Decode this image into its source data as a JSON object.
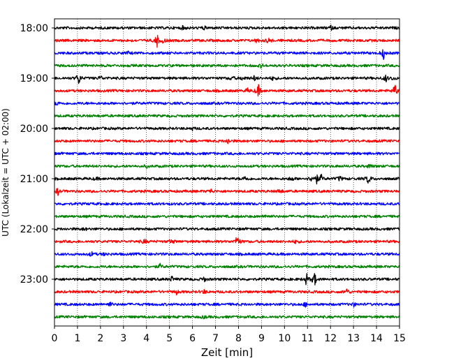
{
  "chart_data": {
    "type": "line",
    "title": "",
    "xlabel": "Zeit  [min]",
    "ylabel": "UTC (Lokalzeit = UTC + 02:00)",
    "xlim": [
      0,
      15
    ],
    "x_ticks": [
      0,
      1,
      2,
      3,
      4,
      5,
      6,
      7,
      8,
      9,
      10,
      11,
      12,
      13,
      14,
      15
    ],
    "x_tick_labels": [
      "0",
      "1",
      "2",
      "3",
      "4",
      "5",
      "6",
      "7",
      "8",
      "9",
      "10",
      "11",
      "12",
      "13",
      "14",
      "15"
    ],
    "y_tick_labels": [
      "18:00",
      "19:00",
      "20:00",
      "21:00",
      "22:00",
      "23:00"
    ],
    "y_tick_rows": [
      0,
      4,
      8,
      12,
      16,
      20
    ],
    "vertical_grid": true,
    "grid_style": "dotted",
    "trace_colors": [
      "#000000",
      "#ff0000",
      "#0000ff",
      "#008000"
    ],
    "traces_per_hour": 4,
    "minutes_per_trace": 15,
    "traces": [
      {
        "start": "18:00",
        "events": [
          {
            "t": 5.6,
            "a": 0.25
          },
          {
            "t": 12.0,
            "a": 0.3
          },
          {
            "t": 6.5,
            "a": 0.2
          }
        ]
      },
      {
        "start": "18:15",
        "events": [
          {
            "t": 4.45,
            "a": 0.9
          },
          {
            "t": 4.75,
            "a": 0.35
          },
          {
            "t": 8.8,
            "a": 0.3
          },
          {
            "t": 9.3,
            "a": 0.35
          }
        ]
      },
      {
        "start": "18:30",
        "events": [
          {
            "t": 14.3,
            "a": 0.75
          },
          {
            "t": 3.2,
            "a": 0.15
          }
        ]
      },
      {
        "start": "18:45",
        "events": [
          {
            "t": 9.0,
            "a": 0.25
          }
        ]
      },
      {
        "start": "19:00",
        "events": [
          {
            "t": 1.05,
            "a": 0.85
          },
          {
            "t": 2.0,
            "a": 0.3
          },
          {
            "t": 7.7,
            "a": 0.3
          },
          {
            "t": 8.2,
            "a": 0.35
          },
          {
            "t": 8.7,
            "a": 0.3
          },
          {
            "t": 9.5,
            "a": 0.25
          },
          {
            "t": 14.4,
            "a": 0.45
          },
          {
            "t": 14.7,
            "a": 0.2
          }
        ]
      },
      {
        "start": "19:15",
        "events": [
          {
            "t": 8.85,
            "a": 0.95
          },
          {
            "t": 14.8,
            "a": 0.85
          },
          {
            "t": 8.4,
            "a": 0.25
          }
        ]
      },
      {
        "start": "19:30",
        "events": [
          {
            "t": 0.1,
            "a": 0.25
          }
        ]
      },
      {
        "start": "19:45",
        "events": []
      },
      {
        "start": "20:00",
        "events": [
          {
            "t": 6.0,
            "a": 0.15
          }
        ]
      },
      {
        "start": "20:15",
        "events": [
          {
            "t": 7.55,
            "a": 0.35
          }
        ]
      },
      {
        "start": "20:30",
        "events": []
      },
      {
        "start": "20:45",
        "events": [
          {
            "t": 13.7,
            "a": 0.3
          },
          {
            "t": 4.0,
            "a": 0.15
          }
        ]
      },
      {
        "start": "21:00",
        "events": [
          {
            "t": 8.3,
            "a": 0.35
          },
          {
            "t": 10.3,
            "a": 0.3
          },
          {
            "t": 11.2,
            "a": 0.55
          },
          {
            "t": 11.4,
            "a": 0.5
          },
          {
            "t": 11.6,
            "a": 0.45
          },
          {
            "t": 12.4,
            "a": 0.35
          },
          {
            "t": 13.65,
            "a": 0.75
          },
          {
            "t": 1.8,
            "a": 0.2
          }
        ]
      },
      {
        "start": "21:15",
        "events": [
          {
            "t": 0.15,
            "a": 0.45
          },
          {
            "t": 6.8,
            "a": 0.3
          },
          {
            "t": 9.8,
            "a": 0.3
          }
        ]
      },
      {
        "start": "21:30",
        "events": []
      },
      {
        "start": "21:45",
        "events": [
          {
            "t": 9.2,
            "a": 0.25
          }
        ]
      },
      {
        "start": "22:00",
        "events": [
          {
            "t": 1.3,
            "a": 0.2
          }
        ]
      },
      {
        "start": "22:15",
        "events": [
          {
            "t": 7.95,
            "a": 0.95
          },
          {
            "t": 3.9,
            "a": 0.3
          },
          {
            "t": 5.1,
            "a": 0.3
          },
          {
            "t": 10.5,
            "a": 0.25
          }
        ]
      },
      {
        "start": "22:30",
        "events": [
          {
            "t": 1.6,
            "a": 0.3
          },
          {
            "t": 2.2,
            "a": 0.2
          }
        ]
      },
      {
        "start": "22:45",
        "events": [
          {
            "t": 4.6,
            "a": 0.3
          }
        ]
      },
      {
        "start": "23:00",
        "events": [
          {
            "t": 5.1,
            "a": 0.35
          },
          {
            "t": 6.5,
            "a": 0.3
          },
          {
            "t": 10.95,
            "a": 0.8
          },
          {
            "t": 11.3,
            "a": 0.95
          }
        ]
      },
      {
        "start": "23:15",
        "events": [
          {
            "t": 5.3,
            "a": 0.3
          },
          {
            "t": 6.5,
            "a": 0.25
          },
          {
            "t": 12.7,
            "a": 0.45
          }
        ]
      },
      {
        "start": "23:30",
        "events": [
          {
            "t": 2.4,
            "a": 0.3
          },
          {
            "t": 10.9,
            "a": 0.25
          },
          {
            "t": 13.0,
            "a": 0.25
          }
        ]
      },
      {
        "start": "23:45",
        "events": [
          {
            "t": 6.5,
            "a": 0.15
          }
        ]
      }
    ]
  }
}
